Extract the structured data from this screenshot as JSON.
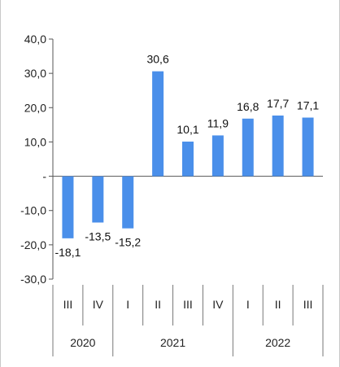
{
  "chart_data": {
    "type": "bar",
    "title": "",
    "xlabel": "",
    "ylabel": "",
    "ylim": [
      -30,
      40
    ],
    "y_ticks": [
      {
        "value": 40,
        "label": "40,0"
      },
      {
        "value": 30,
        "label": "30,0"
      },
      {
        "value": 20,
        "label": "20,0"
      },
      {
        "value": 10,
        "label": "10,0"
      },
      {
        "value": 0,
        "label": "-"
      },
      {
        "value": -10,
        "label": "-10,0"
      },
      {
        "value": -20,
        "label": "-20,0"
      },
      {
        "value": -30,
        "label": "-30,0"
      }
    ],
    "grid": false,
    "bar_color": "#4a8fea",
    "categories": [
      "III",
      "IV",
      "I",
      "II",
      "III",
      "IV",
      "I",
      "II",
      "III"
    ],
    "values": [
      -18.1,
      -13.5,
      -15.2,
      30.6,
      10.1,
      11.9,
      16.8,
      17.7,
      17.1
    ],
    "value_labels": [
      "-18,1",
      "-13,5",
      "-15,2",
      "30,6",
      "10,1",
      "11,9",
      "16,8",
      "17,7",
      "17,1"
    ],
    "year_groups": [
      {
        "label": "2020",
        "count": 2
      },
      {
        "label": "2021",
        "count": 4
      },
      {
        "label": "2022",
        "count": 3
      }
    ]
  }
}
